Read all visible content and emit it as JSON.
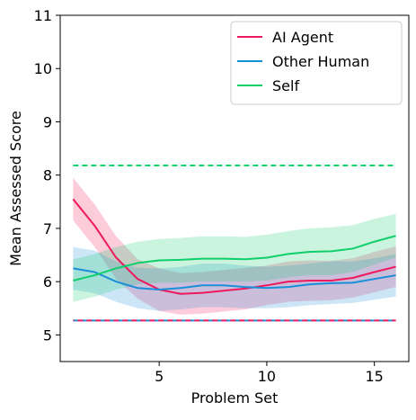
{
  "chart_data": {
    "type": "line",
    "title": "",
    "xlabel": "Problem Set",
    "ylabel": "Mean Assessed Score",
    "xlim": [
      0.4,
      16.6
    ],
    "ylim": [
      4.5,
      11
    ],
    "xticks": [
      5,
      10,
      15
    ],
    "yticks": [
      5,
      6,
      7,
      8,
      9,
      10,
      11
    ],
    "grid": false,
    "legend_position": "top-right",
    "x": [
      1,
      2,
      3,
      4,
      5,
      6,
      7,
      8,
      9,
      10,
      11,
      12,
      13,
      14,
      15,
      16
    ],
    "series": [
      {
        "name": "AI Agent",
        "color": "#f0185c",
        "values": [
          7.55,
          7.05,
          6.45,
          6.05,
          5.85,
          5.77,
          5.79,
          5.83,
          5.87,
          5.93,
          6.0,
          6.02,
          6.02,
          6.07,
          6.18,
          6.28
        ],
        "lower": [
          7.15,
          6.65,
          6.05,
          5.68,
          5.45,
          5.38,
          5.4,
          5.44,
          5.48,
          5.56,
          5.62,
          5.64,
          5.65,
          5.7,
          5.8,
          5.9
        ],
        "upper": [
          7.95,
          7.45,
          6.85,
          6.42,
          6.25,
          6.16,
          6.18,
          6.22,
          6.26,
          6.3,
          6.38,
          6.4,
          6.39,
          6.44,
          6.56,
          6.66
        ]
      },
      {
        "name": "Other Human",
        "color": "#1a8fd9",
        "values": [
          6.25,
          6.18,
          6.0,
          5.88,
          5.85,
          5.88,
          5.93,
          5.93,
          5.9,
          5.88,
          5.9,
          5.95,
          5.97,
          5.98,
          6.05,
          6.12
        ],
        "lower": [
          5.85,
          5.78,
          5.62,
          5.5,
          5.45,
          5.48,
          5.52,
          5.52,
          5.5,
          5.5,
          5.52,
          5.56,
          5.58,
          5.6,
          5.66,
          5.72
        ],
        "upper": [
          6.65,
          6.58,
          6.38,
          6.26,
          6.25,
          6.28,
          6.34,
          6.34,
          6.3,
          6.28,
          6.3,
          6.34,
          6.38,
          6.38,
          6.44,
          6.52
        ]
      },
      {
        "name": "Self",
        "color": "#0fcf6a",
        "values": [
          6.02,
          6.12,
          6.25,
          6.35,
          6.4,
          6.41,
          6.43,
          6.43,
          6.42,
          6.45,
          6.52,
          6.56,
          6.57,
          6.62,
          6.75,
          6.86
        ],
        "lower": [
          5.62,
          5.72,
          5.85,
          5.95,
          5.98,
          5.98,
          6.0,
          6.0,
          6.0,
          6.02,
          6.08,
          6.12,
          6.12,
          6.18,
          6.32,
          6.45
        ],
        "upper": [
          6.42,
          6.52,
          6.65,
          6.75,
          6.8,
          6.82,
          6.85,
          6.85,
          6.84,
          6.88,
          6.95,
          7.0,
          7.02,
          7.06,
          7.18,
          7.27
        ]
      }
    ],
    "reference_lines": [
      {
        "color": "#0fcf6a",
        "y": 8.18,
        "x_range": [
          1,
          16
        ],
        "style": "dashed"
      },
      {
        "color": "#1a8fd9",
        "y": 5.27,
        "x_range": [
          1,
          16
        ],
        "style": "dashed"
      },
      {
        "color": "#f0185c",
        "y": 5.27,
        "x_range": [
          1,
          16
        ],
        "style": "dashed"
      }
    ]
  }
}
